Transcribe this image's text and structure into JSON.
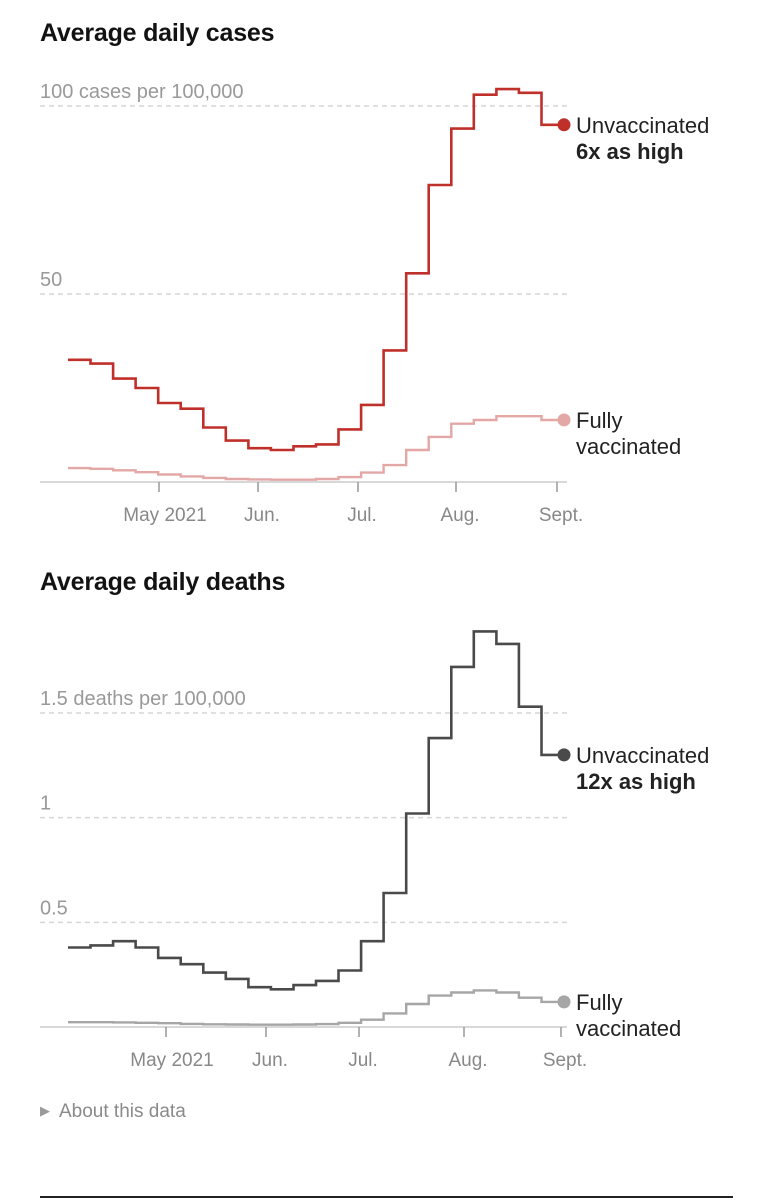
{
  "chart_data": [
    {
      "type": "line",
      "title": "Average daily cases",
      "y_unit_label": "100 cases per 100,000",
      "yticks": [
        "100 cases per 100,000",
        "50"
      ],
      "ytick_values": [
        100,
        50
      ],
      "ylim": [
        0,
        100
      ],
      "x_tick_labels": [
        "May 2021",
        "Jun.",
        "Jul.",
        "Aug.",
        "Sept."
      ],
      "interpolation": "step",
      "grid": "dashed horizontal",
      "series": [
        {
          "name": "Unvaccinated",
          "annotation": "6x as high",
          "color": "#c0302b",
          "values": [
            32.5,
            31.5,
            27.5,
            25,
            21,
            19.5,
            14.5,
            11,
            9,
            8.5,
            9.5,
            10,
            14,
            20.5,
            35,
            55.5,
            79,
            94,
            103,
            104.5,
            103.5,
            95
          ]
        },
        {
          "name": "Fully vaccinated",
          "color": "#e3a8a6",
          "values": [
            3.7,
            3.5,
            3.1,
            2.6,
            2,
            1.5,
            1.1,
            0.8,
            0.7,
            0.6,
            0.6,
            0.8,
            1.3,
            2.5,
            4.5,
            8.5,
            12,
            15.5,
            16.5,
            17.5,
            17.5,
            16.5
          ]
        }
      ]
    },
    {
      "type": "line",
      "title": "Average daily deaths",
      "y_unit_label": "1.5 deaths per 100,000",
      "yticks": [
        "1.5 deaths per 100,000",
        "1",
        "0.5"
      ],
      "ytick_values": [
        1.5,
        1,
        0.5
      ],
      "ylim": [
        0,
        1.95
      ],
      "x_tick_labels": [
        "May 2021",
        "Jun.",
        "Jul.",
        "Aug.",
        "Sept."
      ],
      "interpolation": "step",
      "grid": "dashed horizontal",
      "series": [
        {
          "name": "Unvaccinated",
          "annotation": "12x as high",
          "color": "#4a4a4a",
          "values": [
            0.38,
            0.39,
            0.41,
            0.38,
            0.33,
            0.3,
            0.26,
            0.23,
            0.19,
            0.18,
            0.2,
            0.22,
            0.27,
            0.41,
            0.64,
            1.02,
            1.38,
            1.72,
            1.89,
            1.83,
            1.53,
            1.3
          ]
        },
        {
          "name": "Fully vaccinated",
          "color": "#a6a6a6",
          "values": [
            0.023,
            0.023,
            0.022,
            0.02,
            0.018,
            0.015,
            0.013,
            0.012,
            0.011,
            0.011,
            0.012,
            0.014,
            0.02,
            0.035,
            0.065,
            0.11,
            0.15,
            0.165,
            0.175,
            0.165,
            0.14,
            0.12
          ]
        }
      ]
    }
  ],
  "footer": {
    "about_label": "About this data",
    "about_icon": "triangle-right-icon"
  }
}
